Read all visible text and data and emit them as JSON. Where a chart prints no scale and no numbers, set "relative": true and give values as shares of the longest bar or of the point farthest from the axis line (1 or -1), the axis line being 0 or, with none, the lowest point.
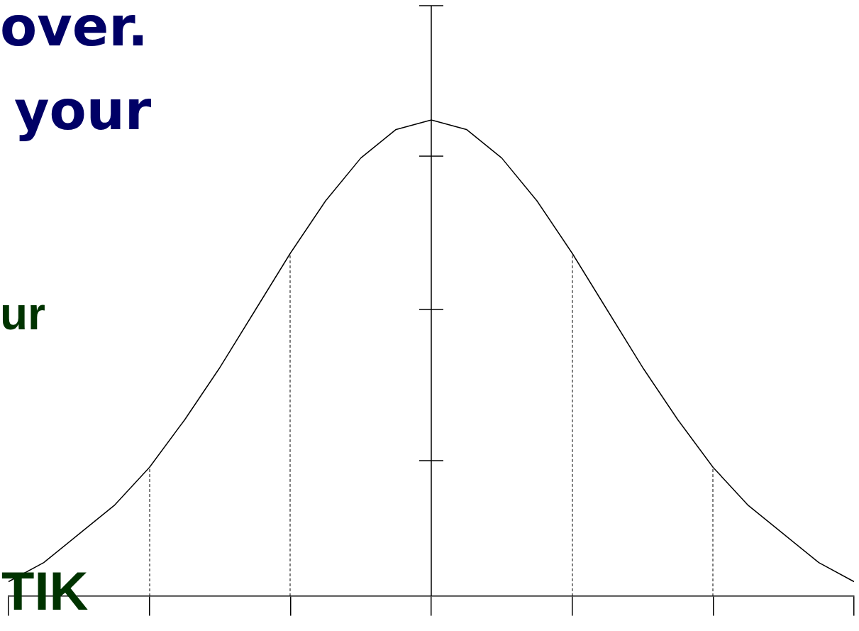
{
  "chart_data": {
    "type": "line",
    "relative": true,
    "color": "#000000",
    "marker": "none",
    "line_style": "solid",
    "grid": false,
    "legend": false,
    "categories": [
      null,
      null,
      null,
      null,
      null,
      null,
      null,
      null,
      null,
      null,
      null,
      null,
      null,
      null,
      null,
      null,
      null,
      null,
      null,
      null,
      null,
      null,
      null,
      null,
      null
    ],
    "values": [
      0.03,
      0.07,
      0.13,
      0.19,
      0.27,
      0.37,
      0.48,
      0.6,
      0.72,
      0.83,
      0.92,
      0.98,
      1,
      0.98,
      0.92,
      0.83,
      0.72,
      0.6,
      0.48,
      0.37,
      0.27,
      0.19,
      0.13,
      0.07,
      0.03
    ],
    "annotations": [
      "over.",
      "your",
      "ur",
      "TIK"
    ]
  }
}
